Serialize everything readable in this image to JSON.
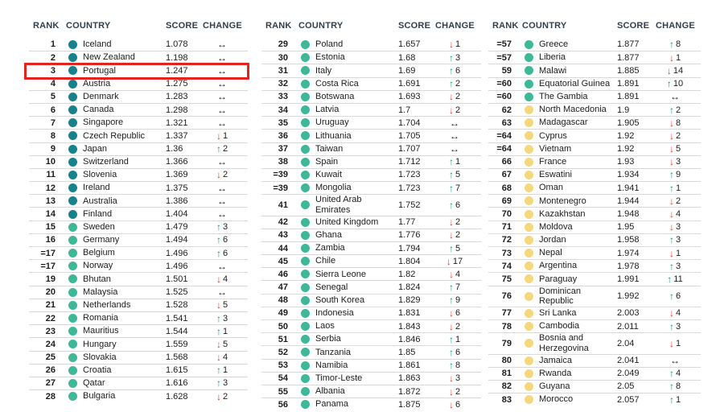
{
  "header": {
    "rank": "RANK",
    "country": "COUNTRY",
    "score": "SCORE",
    "change": "CHANGE"
  },
  "icons": {
    "up": "↑",
    "down": "↓",
    "same": "↔"
  },
  "colors": {
    "tier": {
      "very_high": "#17828b",
      "high": "#3eb897",
      "medium": "#f5d87d"
    },
    "change": {
      "up": "#0a9a66",
      "down": "#e2382e",
      "same": "#1c1c1c"
    },
    "highlight_box": "#e4231c",
    "header_text": "#333f48",
    "row_text": "#1d1d1b",
    "divider": "#d9d9d9"
  },
  "tables": [
    {
      "rows": [
        {
          "rank": "1",
          "country": "Iceland",
          "score": "1.078",
          "tier": "very_high",
          "change": "same"
        },
        {
          "rank": "2",
          "country": "New Zealand",
          "score": "1.198",
          "tier": "very_high",
          "change": "same"
        },
        {
          "rank": "3",
          "country": "Portugal",
          "score": "1.247",
          "tier": "very_high",
          "change": "same",
          "highlighted": true
        },
        {
          "rank": "4",
          "country": "Austria",
          "score": "1.275",
          "tier": "very_high",
          "change": "same"
        },
        {
          "rank": "5",
          "country": "Denmark",
          "score": "1.283",
          "tier": "very_high",
          "change": "same"
        },
        {
          "rank": "6",
          "country": "Canada",
          "score": "1.298",
          "tier": "very_high",
          "change": "same"
        },
        {
          "rank": "7",
          "country": "Singapore",
          "score": "1.321",
          "tier": "very_high",
          "change": "same"
        },
        {
          "rank": "8",
          "country": "Czech Republic",
          "score": "1.337",
          "tier": "very_high",
          "change": "down",
          "value": "1"
        },
        {
          "rank": "9",
          "country": "Japan",
          "score": "1.36",
          "tier": "very_high",
          "change": "up",
          "value": "2"
        },
        {
          "rank": "10",
          "country": "Switzerland",
          "score": "1.366",
          "tier": "very_high",
          "change": "same"
        },
        {
          "rank": "11",
          "country": "Slovenia",
          "score": "1.369",
          "tier": "very_high",
          "change": "down",
          "value": "2"
        },
        {
          "rank": "12",
          "country": "Ireland",
          "score": "1.375",
          "tier": "very_high",
          "change": "same"
        },
        {
          "rank": "13",
          "country": "Australia",
          "score": "1.386",
          "tier": "very_high",
          "change": "same"
        },
        {
          "rank": "14",
          "country": "Finland",
          "score": "1.404",
          "tier": "very_high",
          "change": "same"
        },
        {
          "rank": "15",
          "country": "Sweden",
          "score": "1.479",
          "tier": "high",
          "change": "up",
          "value": "3"
        },
        {
          "rank": "16",
          "country": "Germany",
          "score": "1.494",
          "tier": "high",
          "change": "up",
          "value": "6"
        },
        {
          "rank": "=17",
          "country": "Belgium",
          "score": "1.496",
          "tier": "high",
          "change": "up",
          "value": "6"
        },
        {
          "rank": "=17",
          "country": "Norway",
          "score": "1.496",
          "tier": "high",
          "change": "same"
        },
        {
          "rank": "19",
          "country": "Bhutan",
          "score": "1.501",
          "tier": "high",
          "change": "down",
          "value": "4"
        },
        {
          "rank": "20",
          "country": "Malaysia",
          "score": "1.525",
          "tier": "high",
          "change": "same"
        },
        {
          "rank": "21",
          "country": "Netherlands",
          "score": "1.528",
          "tier": "high",
          "change": "down",
          "value": "5"
        },
        {
          "rank": "22",
          "country": "Romania",
          "score": "1.541",
          "tier": "high",
          "change": "up",
          "value": "3"
        },
        {
          "rank": "23",
          "country": "Mauritius",
          "score": "1.544",
          "tier": "high",
          "change": "up",
          "value": "1"
        },
        {
          "rank": "24",
          "country": "Hungary",
          "score": "1.559",
          "tier": "high",
          "change": "down",
          "value": "5"
        },
        {
          "rank": "25",
          "country": "Slovakia",
          "score": "1.568",
          "tier": "high",
          "change": "down",
          "value": "4"
        },
        {
          "rank": "26",
          "country": "Croatia",
          "score": "1.615",
          "tier": "high",
          "change": "up",
          "value": "1"
        },
        {
          "rank": "27",
          "country": "Qatar",
          "score": "1.616",
          "tier": "high",
          "change": "up",
          "value": "3"
        },
        {
          "rank": "28",
          "country": "Bulgaria",
          "score": "1.628",
          "tier": "high",
          "change": "down",
          "value": "2"
        }
      ]
    },
    {
      "rows": [
        {
          "rank": "29",
          "country": "Poland",
          "score": "1.657",
          "tier": "high",
          "change": "down",
          "value": "1"
        },
        {
          "rank": "30",
          "country": "Estonia",
          "score": "1.68",
          "tier": "high",
          "change": "up",
          "value": "3"
        },
        {
          "rank": "31",
          "country": "Italy",
          "score": "1.69",
          "tier": "high",
          "change": "up",
          "value": "6"
        },
        {
          "rank": "32",
          "country": "Costa Rica",
          "score": "1.691",
          "tier": "high",
          "change": "up",
          "value": "2"
        },
        {
          "rank": "33",
          "country": "Botswana",
          "score": "1.693",
          "tier": "high",
          "change": "down",
          "value": "2"
        },
        {
          "rank": "34",
          "country": "Latvia",
          "score": "1.7",
          "tier": "high",
          "change": "down",
          "value": "2"
        },
        {
          "rank": "35",
          "country": "Uruguay",
          "score": "1.704",
          "tier": "high",
          "change": "same"
        },
        {
          "rank": "36",
          "country": "Lithuania",
          "score": "1.705",
          "tier": "high",
          "change": "same"
        },
        {
          "rank": "37",
          "country": "Taiwan",
          "score": "1.707",
          "tier": "high",
          "change": "same"
        },
        {
          "rank": "38",
          "country": "Spain",
          "score": "1.712",
          "tier": "high",
          "change": "up",
          "value": "1"
        },
        {
          "rank": "=39",
          "country": "Kuwait",
          "score": "1.723",
          "tier": "high",
          "change": "up",
          "value": "5"
        },
        {
          "rank": "=39",
          "country": "Mongolia",
          "score": "1.723",
          "tier": "high",
          "change": "up",
          "value": "7"
        },
        {
          "rank": "41",
          "country": "United Arab Emirates",
          "score": "1.752",
          "tier": "high",
          "change": "up",
          "value": "6"
        },
        {
          "rank": "42",
          "country": "United Kingdom",
          "score": "1.77",
          "tier": "high",
          "change": "down",
          "value": "2"
        },
        {
          "rank": "43",
          "country": "Ghana",
          "score": "1.776",
          "tier": "high",
          "change": "down",
          "value": "2"
        },
        {
          "rank": "44",
          "country": "Zambia",
          "score": "1.794",
          "tier": "high",
          "change": "up",
          "value": "5"
        },
        {
          "rank": "45",
          "country": "Chile",
          "score": "1.804",
          "tier": "high",
          "change": "down",
          "value": "17"
        },
        {
          "rank": "46",
          "country": "Sierra Leone",
          "score": "1.82",
          "tier": "high",
          "change": "down",
          "value": "4"
        },
        {
          "rank": "47",
          "country": "Senegal",
          "score": "1.824",
          "tier": "high",
          "change": "up",
          "value": "7"
        },
        {
          "rank": "48",
          "country": "South Korea",
          "score": "1.829",
          "tier": "high",
          "change": "up",
          "value": "9"
        },
        {
          "rank": "49",
          "country": "Indonesia",
          "score": "1.831",
          "tier": "high",
          "change": "down",
          "value": "6"
        },
        {
          "rank": "50",
          "country": "Laos",
          "score": "1.843",
          "tier": "high",
          "change": "down",
          "value": "2"
        },
        {
          "rank": "51",
          "country": "Serbia",
          "score": "1.846",
          "tier": "high",
          "change": "up",
          "value": "1"
        },
        {
          "rank": "52",
          "country": "Tanzania",
          "score": "1.85",
          "tier": "high",
          "change": "up",
          "value": "6"
        },
        {
          "rank": "53",
          "country": "Namibia",
          "score": "1.861",
          "tier": "high",
          "change": "up",
          "value": "8"
        },
        {
          "rank": "54",
          "country": "Timor-Leste",
          "score": "1.863",
          "tier": "high",
          "change": "down",
          "value": "3"
        },
        {
          "rank": "55",
          "country": "Albania",
          "score": "1.872",
          "tier": "high",
          "change": "down",
          "value": "2"
        },
        {
          "rank": "56",
          "country": "Panama",
          "score": "1.875",
          "tier": "high",
          "change": "down",
          "value": "6"
        }
      ]
    },
    {
      "rows": [
        {
          "rank": "=57",
          "country": "Greece",
          "score": "1.877",
          "tier": "high",
          "change": "up",
          "value": "8"
        },
        {
          "rank": "=57",
          "country": "Liberia",
          "score": "1.877",
          "tier": "high",
          "change": "down",
          "value": "1"
        },
        {
          "rank": "59",
          "country": "Malawi",
          "score": "1.885",
          "tier": "high",
          "change": "down",
          "value": "14"
        },
        {
          "rank": "=60",
          "country": "Equatorial Guinea",
          "score": "1.891",
          "tier": "high",
          "change": "up",
          "value": "10"
        },
        {
          "rank": "=60",
          "country": "The Gambia",
          "score": "1.891",
          "tier": "high",
          "change": "same"
        },
        {
          "rank": "62",
          "country": "North Macedonia",
          "score": "1.9",
          "tier": "medium",
          "change": "up",
          "value": "2"
        },
        {
          "rank": "63",
          "country": "Madagascar",
          "score": "1.905",
          "tier": "medium",
          "change": "down",
          "value": "8"
        },
        {
          "rank": "=64",
          "country": "Cyprus",
          "score": "1.92",
          "tier": "medium",
          "change": "down",
          "value": "2"
        },
        {
          "rank": "=64",
          "country": "Vietnam",
          "score": "1.92",
          "tier": "medium",
          "change": "down",
          "value": "5"
        },
        {
          "rank": "66",
          "country": "France",
          "score": "1.93",
          "tier": "medium",
          "change": "down",
          "value": "3"
        },
        {
          "rank": "67",
          "country": "Eswatini",
          "score": "1.934",
          "tier": "medium",
          "change": "up",
          "value": "9"
        },
        {
          "rank": "68",
          "country": "Oman",
          "score": "1.941",
          "tier": "medium",
          "change": "up",
          "value": "1"
        },
        {
          "rank": "69",
          "country": "Montenegro",
          "score": "1.944",
          "tier": "medium",
          "change": "down",
          "value": "2"
        },
        {
          "rank": "70",
          "country": "Kazakhstan",
          "score": "1.948",
          "tier": "medium",
          "change": "down",
          "value": "4"
        },
        {
          "rank": "71",
          "country": "Moldova",
          "score": "1.95",
          "tier": "medium",
          "change": "down",
          "value": "3"
        },
        {
          "rank": "72",
          "country": "Jordan",
          "score": "1.958",
          "tier": "medium",
          "change": "up",
          "value": "3"
        },
        {
          "rank": "73",
          "country": "Nepal",
          "score": "1.974",
          "tier": "medium",
          "change": "down",
          "value": "1"
        },
        {
          "rank": "74",
          "country": "Argentina",
          "score": "1.978",
          "tier": "medium",
          "change": "up",
          "value": "3"
        },
        {
          "rank": "75",
          "country": "Paraguay",
          "score": "1.991",
          "tier": "medium",
          "change": "up",
          "value": "11"
        },
        {
          "rank": "76",
          "country": "Dominican Republic",
          "score": "1.992",
          "tier": "medium",
          "change": "up",
          "value": "6"
        },
        {
          "rank": "77",
          "country": "Sri Lanka",
          "score": "2.003",
          "tier": "medium",
          "change": "down",
          "value": "4"
        },
        {
          "rank": "78",
          "country": "Cambodia",
          "score": "2.011",
          "tier": "medium",
          "change": "up",
          "value": "3"
        },
        {
          "rank": "79",
          "country": "Bosnia and Herzegovina",
          "score": "2.04",
          "tier": "medium",
          "change": "down",
          "value": "1"
        },
        {
          "rank": "80",
          "country": "Jamaica",
          "score": "2.041",
          "tier": "medium",
          "change": "same"
        },
        {
          "rank": "81",
          "country": "Rwanda",
          "score": "2.049",
          "tier": "medium",
          "change": "up",
          "value": "4"
        },
        {
          "rank": "82",
          "country": "Guyana",
          "score": "2.05",
          "tier": "medium",
          "change": "up",
          "value": "8"
        },
        {
          "rank": "83",
          "country": "Morocco",
          "score": "2.057",
          "tier": "medium",
          "change": "up",
          "value": "1"
        }
      ]
    }
  ]
}
